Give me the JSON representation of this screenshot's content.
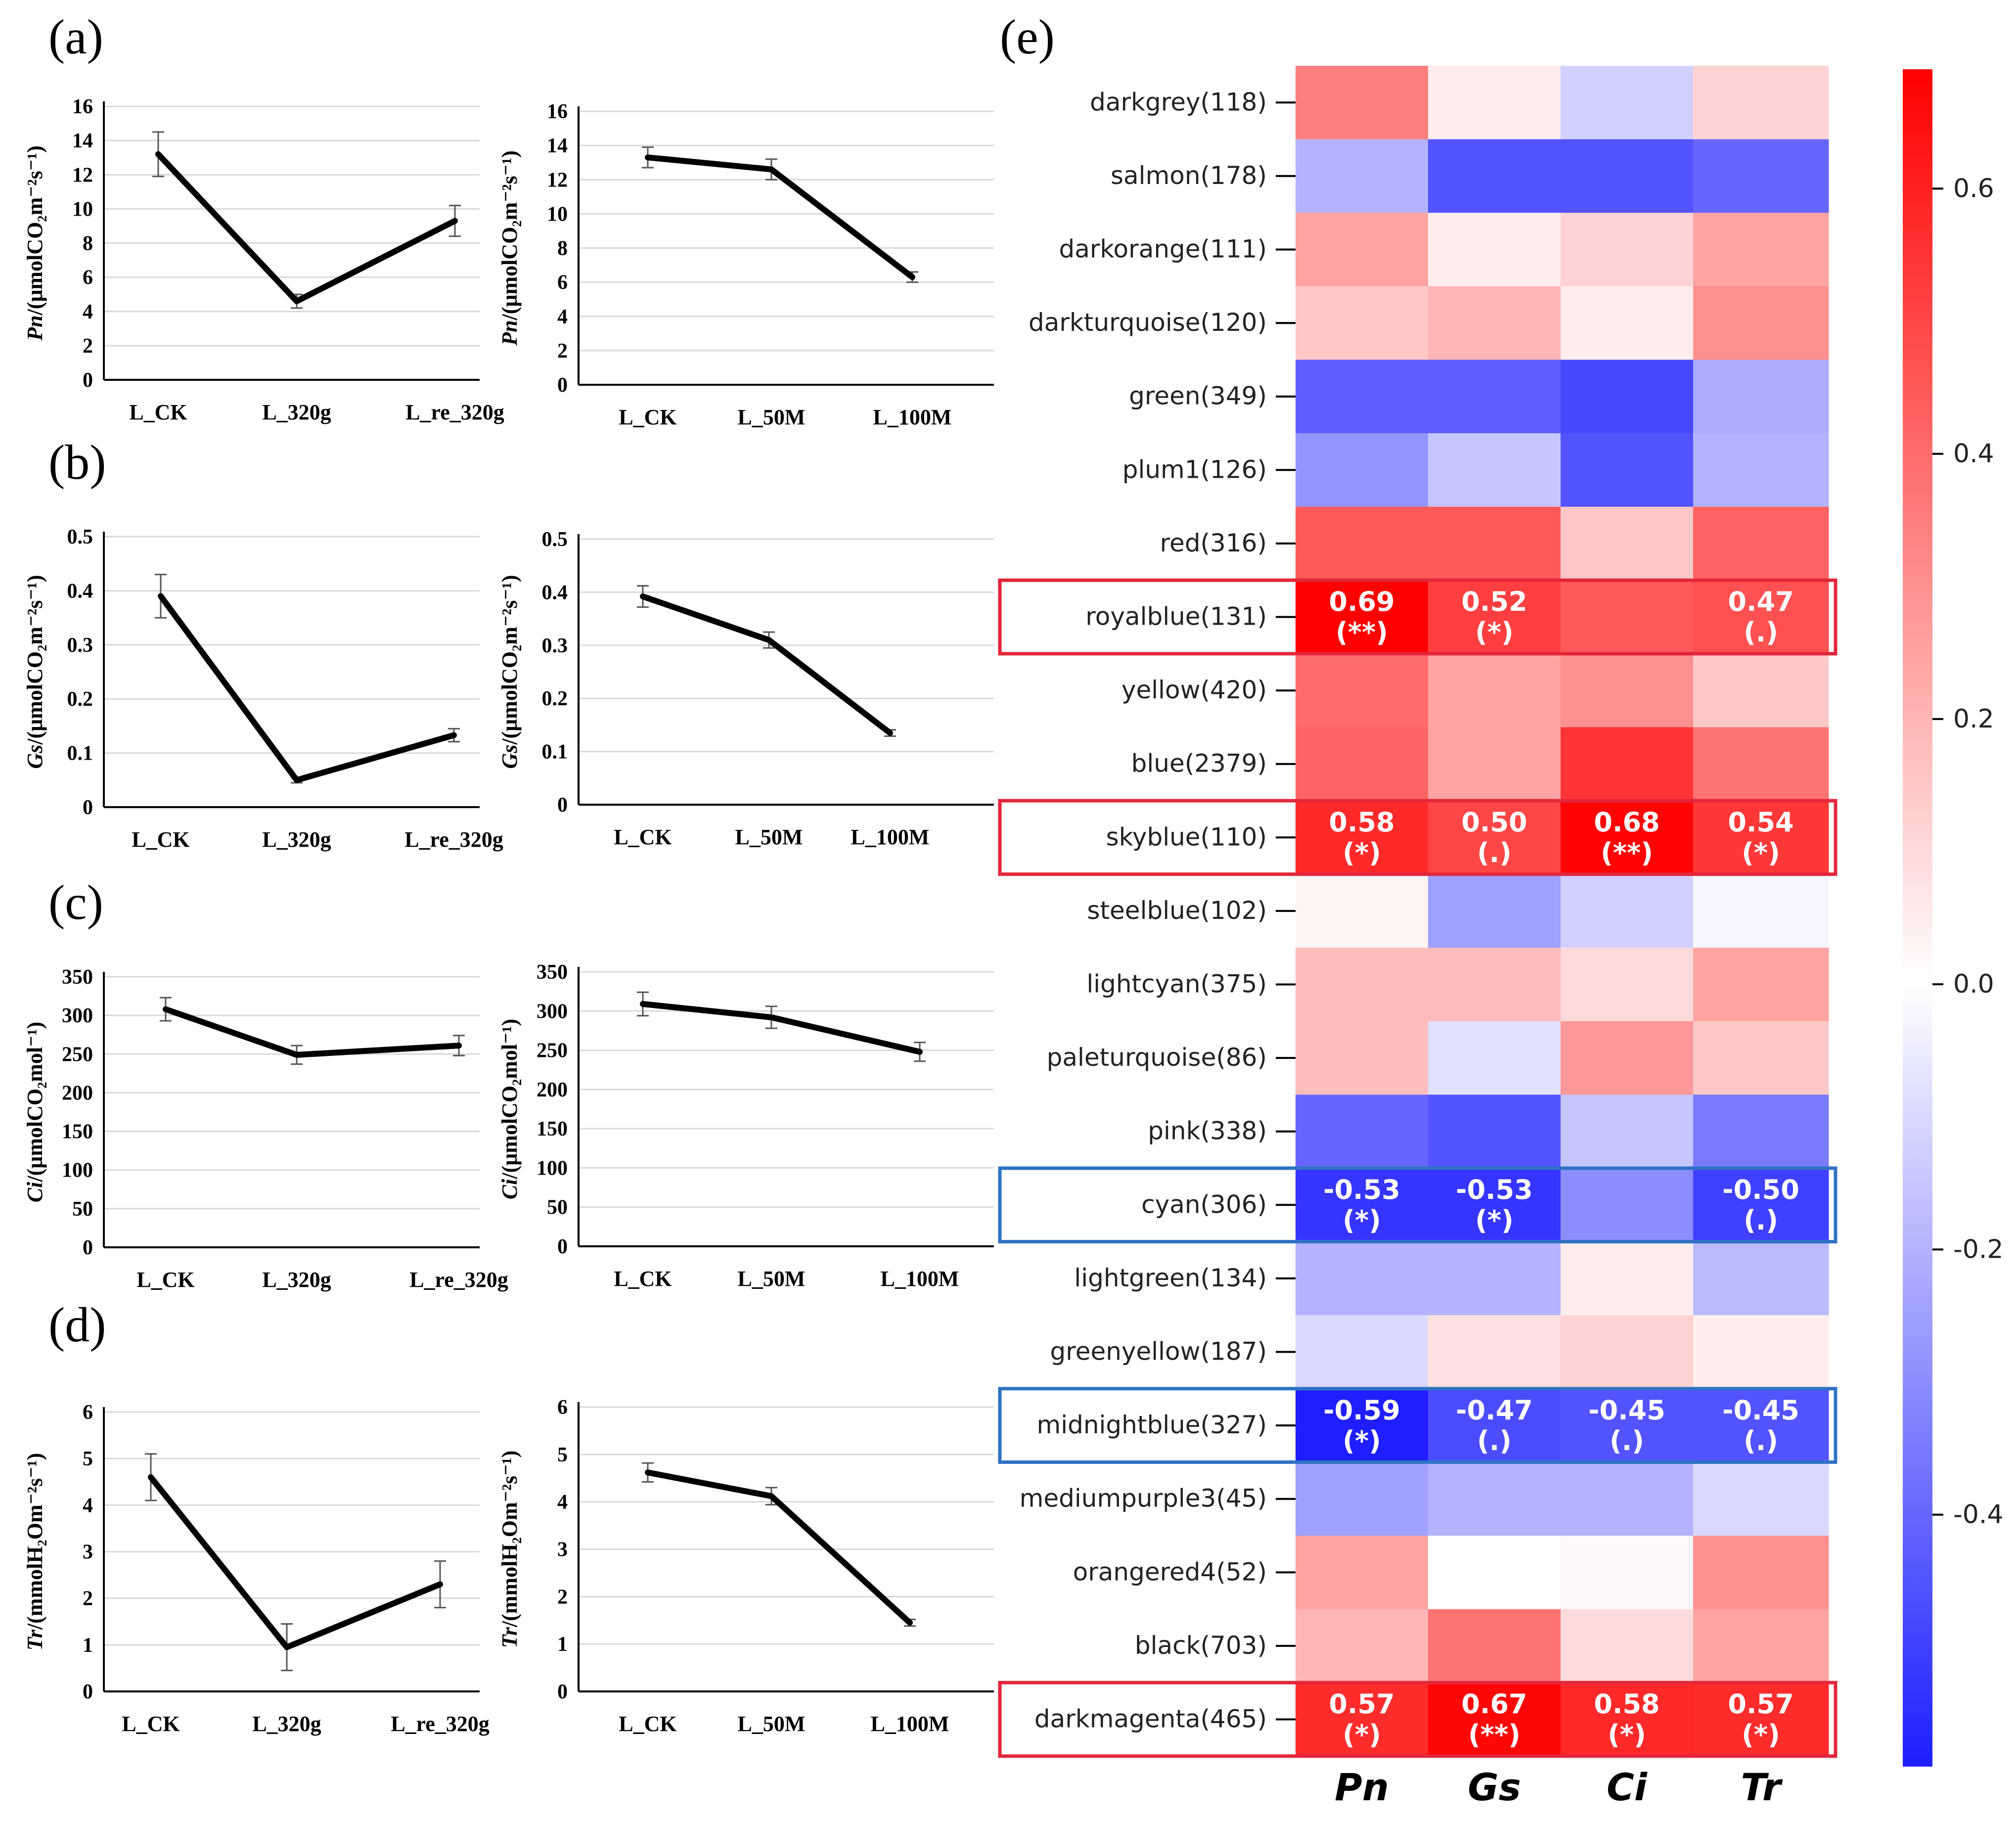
{
  "panel_labels": [
    "(a)",
    "(b)",
    "(c)",
    "(d)",
    "(e)"
  ],
  "chart_data": [
    {
      "type": "line",
      "panel": "a-left",
      "ylabel_var": "Pn",
      "ylabel_unit": "/(μmolCO₂m⁻²s⁻¹)",
      "categories": [
        "L_CK",
        "L_320g",
        "L_re_320g"
      ],
      "values": [
        13.2,
        4.6,
        9.3
      ],
      "errors": [
        1.3,
        0.4,
        0.9
      ],
      "ylim": [
        0,
        16
      ],
      "ticks": [
        0,
        2,
        4,
        6,
        8,
        10,
        12,
        14,
        16
      ]
    },
    {
      "type": "line",
      "panel": "a-right",
      "ylabel_var": "Pn",
      "ylabel_unit": "/(μmolCO₂m⁻²s⁻¹)",
      "categories": [
        "L_CK",
        "L_50M",
        "L_100M"
      ],
      "values": [
        13.3,
        12.6,
        6.3
      ],
      "errors": [
        0.6,
        0.6,
        0.3
      ],
      "ylim": [
        0,
        16
      ],
      "ticks": [
        0,
        2,
        4,
        6,
        8,
        10,
        12,
        14,
        16
      ]
    },
    {
      "type": "line",
      "panel": "b-left",
      "ylabel_var": "Gs",
      "ylabel_unit": "/(μmolCO₂m⁻²s⁻¹)",
      "categories": [
        "L_CK",
        "L_320g",
        "L_re_320g"
      ],
      "values": [
        0.39,
        0.05,
        0.133
      ],
      "errors": [
        0.04,
        0.005,
        0.012
      ],
      "ylim": [
        0,
        0.5
      ],
      "ticks": [
        0,
        0.1,
        0.2,
        0.3,
        0.4,
        0.5
      ]
    },
    {
      "type": "line",
      "panel": "b-right",
      "ylabel_var": "Gs",
      "ylabel_unit": "/(μmolCO₂m⁻²s⁻¹)",
      "categories": [
        "L_CK",
        "L_50M",
        "L_100M"
      ],
      "values": [
        0.392,
        0.31,
        0.135
      ],
      "errors": [
        0.02,
        0.015,
        0.006
      ],
      "ylim": [
        0,
        0.5
      ],
      "ticks": [
        0,
        0.1,
        0.2,
        0.3,
        0.4,
        0.5
      ]
    },
    {
      "type": "line",
      "panel": "c-left",
      "ylabel_var": "Ci",
      "ylabel_unit": "/(μmolCO₂mol⁻¹)",
      "categories": [
        "L_CK",
        "L_320g",
        "L_re_320g"
      ],
      "values": [
        308,
        249,
        261
      ],
      "errors": [
        15,
        12,
        13
      ],
      "ylim": [
        0,
        350
      ],
      "ticks": [
        0,
        50,
        100,
        150,
        200,
        250,
        300,
        350
      ]
    },
    {
      "type": "line",
      "panel": "c-right",
      "ylabel_var": "Ci",
      "ylabel_unit": "/(μmolCO₂mol⁻¹)",
      "categories": [
        "L_CK",
        "L_50M",
        "L_100M"
      ],
      "values": [
        309,
        292,
        248
      ],
      "errors": [
        15,
        14,
        12
      ],
      "ylim": [
        0,
        350
      ],
      "ticks": [
        0,
        50,
        100,
        150,
        200,
        250,
        300,
        350
      ]
    },
    {
      "type": "line",
      "panel": "d-left",
      "ylabel_var": "Tr",
      "ylabel_unit": "/(mmolH₂Om⁻²s⁻¹)",
      "categories": [
        "L_CK",
        "L_320g",
        "L_re_320g"
      ],
      "values": [
        4.6,
        0.95,
        2.3
      ],
      "errors": [
        0.5,
        0.5,
        0.5
      ],
      "ylim": [
        0,
        6
      ],
      "ticks": [
        0,
        1,
        2,
        3,
        4,
        5,
        6
      ]
    },
    {
      "type": "line",
      "panel": "d-right",
      "ylabel_var": "Tr",
      "ylabel_unit": "/(mmolH₂Om⁻²s⁻¹)",
      "categories": [
        "L_CK",
        "L_50M",
        "L_100M"
      ],
      "values": [
        4.62,
        4.12,
        1.45
      ],
      "errors": [
        0.2,
        0.18,
        0.07
      ],
      "ylim": [
        0,
        6
      ],
      "ticks": [
        0,
        1,
        2,
        3,
        4,
        5,
        6
      ]
    },
    {
      "type": "heatmap",
      "panel": "e",
      "columns": [
        "Pn",
        "Gs",
        "Ci",
        "Tr"
      ],
      "rows": [
        "darkgrey(118)",
        "salmon(178)",
        "darkorange(111)",
        "darkturquoise(120)",
        "green(349)",
        "plum1(126)",
        "red(316)",
        "royalblue(131)",
        "yellow(420)",
        "blue(2379)",
        "skyblue(110)",
        "steelblue(102)",
        "lightcyan(375)",
        "paleturquoise(86)",
        "pink(338)",
        "cyan(306)",
        "lightgreen(134)",
        "greenyellow(187)",
        "midnightblue(327)",
        "mediumpurple3(45)",
        "orangered4(52)",
        "black(703)",
        "darkmagenta(465)"
      ],
      "values": [
        [
          0.35,
          0.05,
          -0.12,
          0.12
        ],
        [
          -0.2,
          -0.45,
          -0.45,
          -0.4
        ],
        [
          0.25,
          0.05,
          0.12,
          0.25
        ],
        [
          0.15,
          0.2,
          0.05,
          0.3
        ],
        [
          -0.42,
          -0.42,
          -0.48,
          -0.22
        ],
        [
          -0.28,
          -0.15,
          -0.45,
          -0.2
        ],
        [
          0.45,
          0.45,
          0.15,
          0.42
        ],
        [
          0.69,
          0.52,
          0.45,
          0.47
        ],
        [
          0.4,
          0.25,
          0.3,
          0.15
        ],
        [
          0.42,
          0.25,
          0.55,
          0.38
        ],
        [
          0.58,
          0.5,
          0.68,
          0.54
        ],
        [
          0.03,
          -0.25,
          -0.12,
          -0.02
        ],
        [
          0.18,
          0.18,
          0.1,
          0.25
        ],
        [
          0.18,
          -0.08,
          0.28,
          0.15
        ],
        [
          -0.4,
          -0.45,
          -0.15,
          -0.35
        ],
        [
          -0.53,
          -0.53,
          -0.3,
          -0.5
        ],
        [
          -0.2,
          -0.2,
          0.05,
          -0.18
        ],
        [
          -0.1,
          0.08,
          0.12,
          0.05
        ],
        [
          -0.59,
          -0.47,
          -0.45,
          -0.45
        ],
        [
          -0.25,
          -0.2,
          -0.2,
          -0.1
        ],
        [
          0.25,
          0.0,
          0.02,
          0.3
        ],
        [
          0.2,
          0.38,
          0.1,
          0.25
        ],
        [
          0.57,
          0.67,
          0.58,
          0.57
        ]
      ],
      "annotations": [
        {
          "row": 7,
          "col": 0,
          "value": "0.69",
          "sig": "(**)"
        },
        {
          "row": 7,
          "col": 1,
          "value": "0.52",
          "sig": "(*)"
        },
        {
          "row": 7,
          "col": 3,
          "value": "0.47",
          "sig": "(.)"
        },
        {
          "row": 10,
          "col": 0,
          "value": "0.58",
          "sig": "(*)"
        },
        {
          "row": 10,
          "col": 1,
          "value": "0.50",
          "sig": "(.)"
        },
        {
          "row": 10,
          "col": 2,
          "value": "0.68",
          "sig": "(**)"
        },
        {
          "row": 10,
          "col": 3,
          "value": "0.54",
          "sig": "(*)"
        },
        {
          "row": 15,
          "col": 0,
          "value": "-0.53",
          "sig": "(*)"
        },
        {
          "row": 15,
          "col": 1,
          "value": "-0.53",
          "sig": "(*)"
        },
        {
          "row": 15,
          "col": 3,
          "value": "-0.50",
          "sig": "(.)"
        },
        {
          "row": 18,
          "col": 0,
          "value": "-0.59",
          "sig": "(*)"
        },
        {
          "row": 18,
          "col": 1,
          "value": "-0.47",
          "sig": "(.)"
        },
        {
          "row": 18,
          "col": 2,
          "value": "-0.45",
          "sig": "(.)"
        },
        {
          "row": 18,
          "col": 3,
          "value": "-0.45",
          "sig": "(.)"
        },
        {
          "row": 22,
          "col": 0,
          "value": "0.57",
          "sig": "(*)"
        },
        {
          "row": 22,
          "col": 1,
          "value": "0.67",
          "sig": "(**)"
        },
        {
          "row": 22,
          "col": 2,
          "value": "0.58",
          "sig": "(*)"
        },
        {
          "row": 22,
          "col": 3,
          "value": "0.57",
          "sig": "(*)"
        }
      ],
      "highlight_boxes": [
        {
          "row": 7,
          "color": "#e3263b"
        },
        {
          "row": 10,
          "color": "#e3263b"
        },
        {
          "row": 15,
          "color": "#2f72c4"
        },
        {
          "row": 18,
          "color": "#2f72c4"
        },
        {
          "row": 22,
          "color": "#e3263b"
        }
      ],
      "colorbar": {
        "min": -0.59,
        "max": 0.69,
        "ticks": [
          0.6,
          0.4,
          0.2,
          0.0,
          -0.2,
          -0.4
        ],
        "tick_labels": [
          "0.6",
          "0.4",
          "0.2",
          "0.0",
          "-0.2",
          "-0.4"
        ]
      },
      "colors": {
        "negative": "#1e1eff",
        "neutral": "#ffffff",
        "positive": "#ff0000"
      }
    }
  ]
}
